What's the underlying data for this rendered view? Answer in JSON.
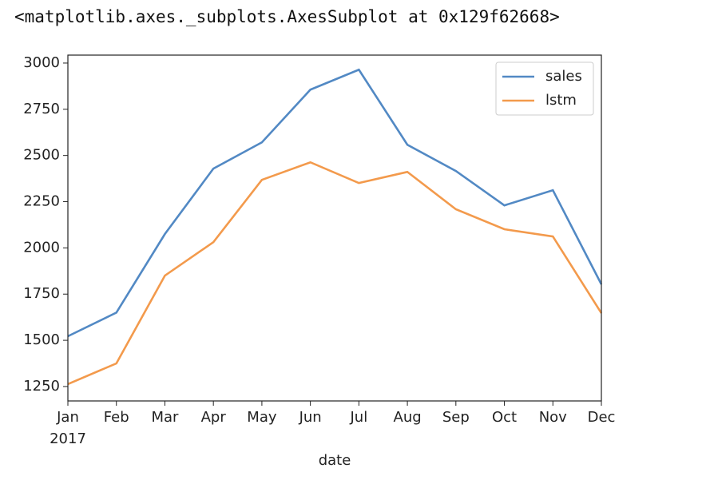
{
  "output": "<matplotlib.axes._subplots.AxesSubplot at 0x129f62668>",
  "chart_data": {
    "type": "line",
    "x_label": "date",
    "year_label": "2017",
    "categories": [
      "Jan",
      "Feb",
      "Mar",
      "Apr",
      "May",
      "Jun",
      "Jul",
      "Aug",
      "Sep",
      "Oct",
      "Nov",
      "Dec"
    ],
    "series": [
      {
        "name": "sales",
        "color": "#5289c4",
        "values": [
          1522,
          1650,
          2075,
          2429,
          2571,
          2856,
          2964,
          2558,
          2416,
          2230,
          2312,
          1803
        ]
      },
      {
        "name": "lstm",
        "color": "#f39a4c",
        "values": [
          1263,
          1375,
          1850,
          2031,
          2368,
          2463,
          2351,
          2411,
          2209,
          2101,
          2062,
          1647
        ]
      }
    ],
    "ylim": [
      1172,
      3043
    ],
    "yticks": [
      1250,
      1500,
      1750,
      2000,
      2250,
      2500,
      2750,
      3000
    ],
    "grid": false,
    "legend": "upper right"
  }
}
